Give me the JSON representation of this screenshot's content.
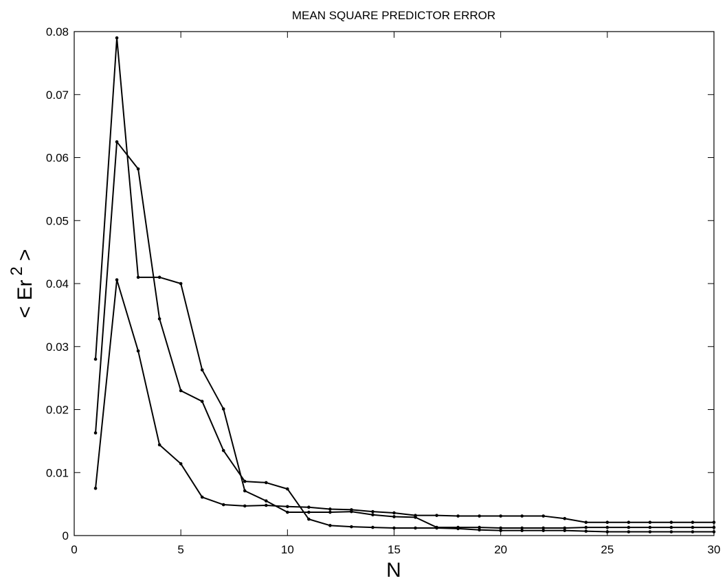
{
  "chart_data": {
    "type": "line",
    "title": "MEAN SQUARE PREDICTOR ERROR",
    "xlabel": "N",
    "ylabel": [
      "< Er",
      "2",
      ">"
    ],
    "x": [
      1,
      2,
      3,
      4,
      5,
      6,
      7,
      8,
      9,
      10,
      11,
      12,
      13,
      14,
      15,
      16,
      17,
      18,
      19,
      20,
      21,
      22,
      23,
      24,
      25,
      26,
      27,
      28,
      29,
      30
    ],
    "series": [
      {
        "color": "#000000",
        "values": [
          0.028,
          0.079,
          0.041,
          0.041,
          0.04,
          0.0263,
          0.0201,
          0.0071,
          0.0055,
          0.0037,
          0.0037,
          0.0037,
          0.0038,
          0.0033,
          0.003,
          0.0029,
          0.0013,
          0.0013,
          0.0013,
          0.0012,
          0.0012,
          0.0012,
          0.0012,
          0.0013,
          0.0013,
          0.0013,
          0.0013,
          0.0013,
          0.0013,
          0.0013
        ]
      },
      {
        "color": "#000000",
        "values": [
          0.0163,
          0.0625,
          0.0582,
          0.0344,
          0.023,
          0.0213,
          0.0135,
          0.0086,
          0.0084,
          0.0074,
          0.0026,
          0.0016,
          0.0014,
          0.0013,
          0.0012,
          0.0012,
          0.0012,
          0.0011,
          0.0009,
          0.0008,
          0.0008,
          0.0008,
          0.0008,
          0.0007,
          0.0006,
          0.0006,
          0.0006,
          0.0006,
          0.0006,
          0.0006
        ]
      },
      {
        "color": "#000000",
        "values": [
          0.0075,
          0.0406,
          0.0293,
          0.0144,
          0.0114,
          0.0061,
          0.0049,
          0.0047,
          0.0048,
          0.0046,
          0.0045,
          0.0042,
          0.0041,
          0.0038,
          0.0036,
          0.0032,
          0.0032,
          0.0031,
          0.0031,
          0.0031,
          0.0031,
          0.0031,
          0.0027,
          0.0021,
          0.0021,
          0.0021,
          0.0021,
          0.0021,
          0.0021,
          0.0021
        ]
      }
    ],
    "xlim": [
      0,
      30
    ],
    "xticks": [
      0,
      5,
      10,
      15,
      20,
      25,
      30
    ],
    "ylim": [
      0,
      0.08
    ],
    "yticks": [
      0,
      0.01,
      0.02,
      0.03,
      0.04,
      0.05,
      0.06,
      0.07,
      0.08
    ]
  }
}
